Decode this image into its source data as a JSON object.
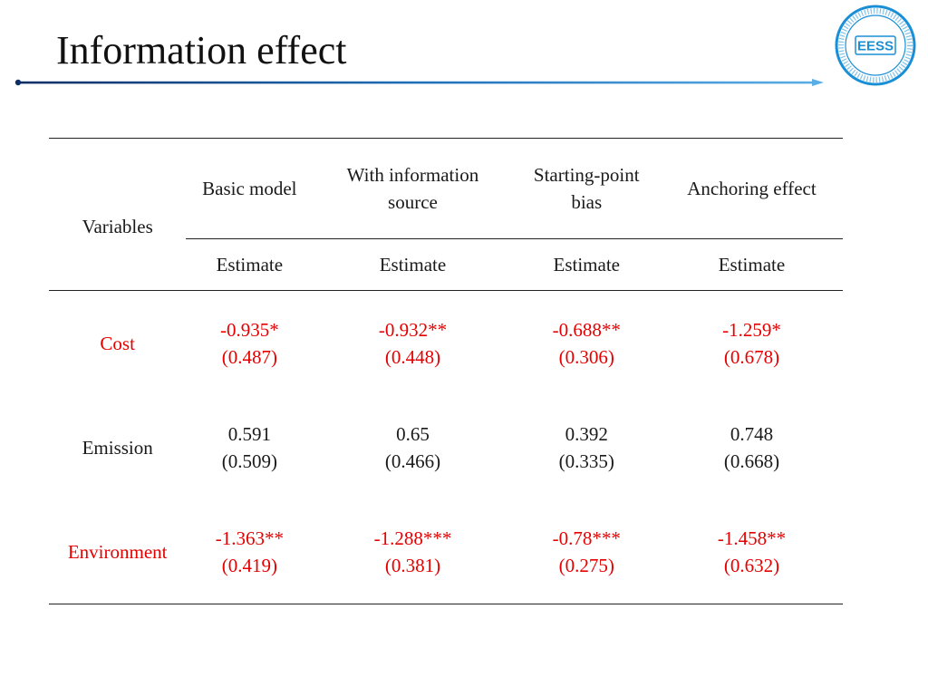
{
  "title": "Information effect",
  "table": {
    "variables_label": "Variables",
    "columns": [
      {
        "label": "Basic model",
        "sub": "Estimate"
      },
      {
        "label": "With information source",
        "sub": "Estimate"
      },
      {
        "label": "Starting-point bias",
        "sub": "Estimate"
      },
      {
        "label": "Anchoring effect",
        "sub": "Estimate"
      }
    ],
    "rows": [
      {
        "variable": "Cost",
        "highlight": true,
        "cells": [
          {
            "estimate": "-0.935*",
            "se": "(0.487)"
          },
          {
            "estimate": "-0.932**",
            "se": "(0.448)"
          },
          {
            "estimate": "-0.688**",
            "se": "(0.306)"
          },
          {
            "estimate": "-1.259*",
            "se": "(0.678)"
          }
        ]
      },
      {
        "variable": "Emission",
        "highlight": false,
        "cells": [
          {
            "estimate": "0.591",
            "se": "(0.509)"
          },
          {
            "estimate": "0.65",
            "se": "(0.466)"
          },
          {
            "estimate": "0.392",
            "se": "(0.335)"
          },
          {
            "estimate": "0.748",
            "se": "(0.668)"
          }
        ]
      },
      {
        "variable": "Environment",
        "highlight": true,
        "cells": [
          {
            "estimate": "-1.363**",
            "se": "(0.419)"
          },
          {
            "estimate": "-1.288***",
            "se": "(0.381)"
          },
          {
            "estimate": "-0.78***",
            "se": "(0.275)"
          },
          {
            "estimate": "-1.458**",
            "se": "(0.632)"
          }
        ]
      }
    ]
  },
  "colors": {
    "highlight": "#e60000",
    "title_rule": "#1f6fb8",
    "logo": "#1a8fd6"
  },
  "logo": {
    "icon": "university-seal-logo",
    "text": "EESS"
  }
}
